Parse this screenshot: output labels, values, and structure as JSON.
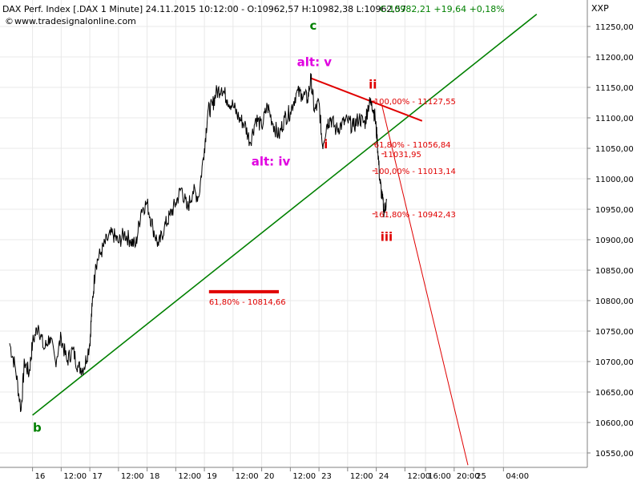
{
  "header": {
    "title": "DAX Perf. Index [.DAX  1 Minute] 24.11.2015 10:12:00 - O:10962,57 H:10982,38 L:10962,57",
    "close_text": "C:10982,21 +19,64 +0,18%",
    "website": "www.tradesignalonline.com",
    "axis_name": "XXP"
  },
  "colors": {
    "price": "#000000",
    "trendline": "#008000",
    "fib": "#e00000",
    "magenta": "#e000e0",
    "green_label": "#008000",
    "grid": "#e8e8e8"
  },
  "chart_data": {
    "type": "line",
    "title": "DAX Perf. Index [.DAX  1 Minute]",
    "ylim": [
      10520,
      11290
    ],
    "y_ticks": [
      10550,
      10600,
      10650,
      10700,
      10750,
      10800,
      10850,
      10900,
      10950,
      11000,
      11050,
      11100,
      11150,
      11200,
      11250
    ],
    "y_tick_labels": [
      "10550,00",
      "10600,00",
      "10650,00",
      "10700,00",
      "10750,00",
      "10800,00",
      "10850,00",
      "10900,00",
      "10950,00",
      "11000,00",
      "11050,00",
      "11100,00",
      "11150,00",
      "11200,00",
      "11250,00"
    ],
    "x_range": [
      0,
      50
    ],
    "x_ticks": [
      {
        "t": 2,
        "label": "16"
      },
      {
        "t": 4.5,
        "label": "12:00"
      },
      {
        "t": 7,
        "label": "17"
      },
      {
        "t": 9.5,
        "label": "12:00"
      },
      {
        "t": 12,
        "label": "18"
      },
      {
        "t": 14.5,
        "label": "12:00"
      },
      {
        "t": 17,
        "label": "19"
      },
      {
        "t": 19.5,
        "label": "12:00"
      },
      {
        "t": 22,
        "label": "20"
      },
      {
        "t": 24.5,
        "label": "12:00"
      },
      {
        "t": 27,
        "label": "23"
      },
      {
        "t": 29.5,
        "label": "12:00"
      },
      {
        "t": 32,
        "label": "24"
      },
      {
        "t": 34.5,
        "label": "12:00"
      },
      {
        "t": 36.3,
        "label": "16:00"
      },
      {
        "t": 38.8,
        "label": "20:00"
      },
      {
        "t": 40.5,
        "label": "25"
      },
      {
        "t": 43.1,
        "label": "04:00"
      }
    ],
    "series": [
      {
        "x": [
          0,
          0.5,
          1,
          1.3,
          1.7,
          2,
          2.5,
          3,
          3.5,
          4,
          4.5,
          5,
          5.5,
          6,
          6.5,
          7,
          7.2,
          7.5,
          8,
          8.5,
          9,
          9.5,
          10,
          10.5,
          11,
          11.5,
          12,
          12.5,
          13,
          13.5,
          14,
          14.5,
          15,
          15.5,
          16,
          16.5,
          17,
          17.3,
          17.7,
          18,
          18.5,
          19,
          19.5,
          20,
          20.5,
          21,
          21.5,
          22,
          22.5,
          23,
          23.5,
          24,
          24.5,
          25,
          25.5,
          26,
          26.3,
          26.6,
          27,
          27.3,
          27.7,
          28,
          28.5,
          29,
          29.5,
          30,
          30.5,
          31,
          31.3,
          31.6,
          31.9,
          32.1,
          32.3,
          32.5,
          32.7,
          32.9
        ],
        "values": [
          10730,
          10690,
          10620,
          10700,
          10680,
          10730,
          10760,
          10720,
          10740,
          10700,
          10740,
          10700,
          10720,
          10690,
          10690,
          10730,
          10790,
          10860,
          10880,
          10900,
          10910,
          10895,
          10910,
          10900,
          10890,
          10950,
          10960,
          10920,
          10890,
          10920,
          10940,
          10960,
          10985,
          10950,
          10980,
          10970,
          11050,
          11110,
          11120,
          11140,
          11150,
          11130,
          11120,
          11100,
          11090,
          11060,
          11100,
          11085,
          11120,
          11090,
          11070,
          11100,
          11110,
          11140,
          11140,
          11130,
          11165,
          11110,
          11125,
          11055,
          11090,
          11100,
          11080,
          11090,
          11095,
          11085,
          11100,
          11090,
          11120,
          11127,
          11100,
          11060,
          11000,
          10970,
          10945,
          10965
        ]
      }
    ],
    "trendlines": [
      {
        "name": "uptrend",
        "color": "green",
        "x1": 2,
        "y1": 10612,
        "x2": 46,
        "y2": 11270
      },
      {
        "name": "resistance",
        "color": "red",
        "x1": 26.3,
        "y1": 11165,
        "x2": 36,
        "y2": 11095
      },
      {
        "name": "projection",
        "color": "red",
        "x1": 32.5,
        "y1": 11120,
        "x2": 40,
        "y2": 10530
      }
    ],
    "fib_levels": [
      {
        "label": "61,80% - 10814,66",
        "x1": 17.4,
        "x2": 23.5,
        "y": 10814.66,
        "heavy": true
      },
      {
        "label": "100,00% - 11127,55",
        "x": 31.8,
        "y": 11127.55
      },
      {
        "label": "61,80% - 11056,84",
        "x": 31.8,
        "y": 11056.84
      },
      {
        "label": "11031,95",
        "x": 32.6,
        "y": 11041
      },
      {
        "label": "100,00% - 11013,14",
        "x": 31.8,
        "y": 11013.14
      },
      {
        "label": "161,80% - 10942,43",
        "x": 31.8,
        "y": 10942.43
      }
    ],
    "wave_labels": [
      {
        "text": "b",
        "x": 2.4,
        "y": 10585,
        "color": "green"
      },
      {
        "text": "c",
        "x": 26.5,
        "y": 11245,
        "color": "green"
      },
      {
        "text": "alt: v",
        "x": 26.6,
        "y": 11185,
        "color": "magenta"
      },
      {
        "text": "alt: iv",
        "x": 22.8,
        "y": 11022,
        "color": "magenta"
      },
      {
        "text": "i",
        "x": 27.6,
        "y": 11050,
        "color": "red"
      },
      {
        "text": "ii",
        "x": 31.7,
        "y": 11148,
        "color": "red"
      },
      {
        "text": "iii",
        "x": 32.9,
        "y": 10898,
        "color": "red"
      }
    ]
  }
}
